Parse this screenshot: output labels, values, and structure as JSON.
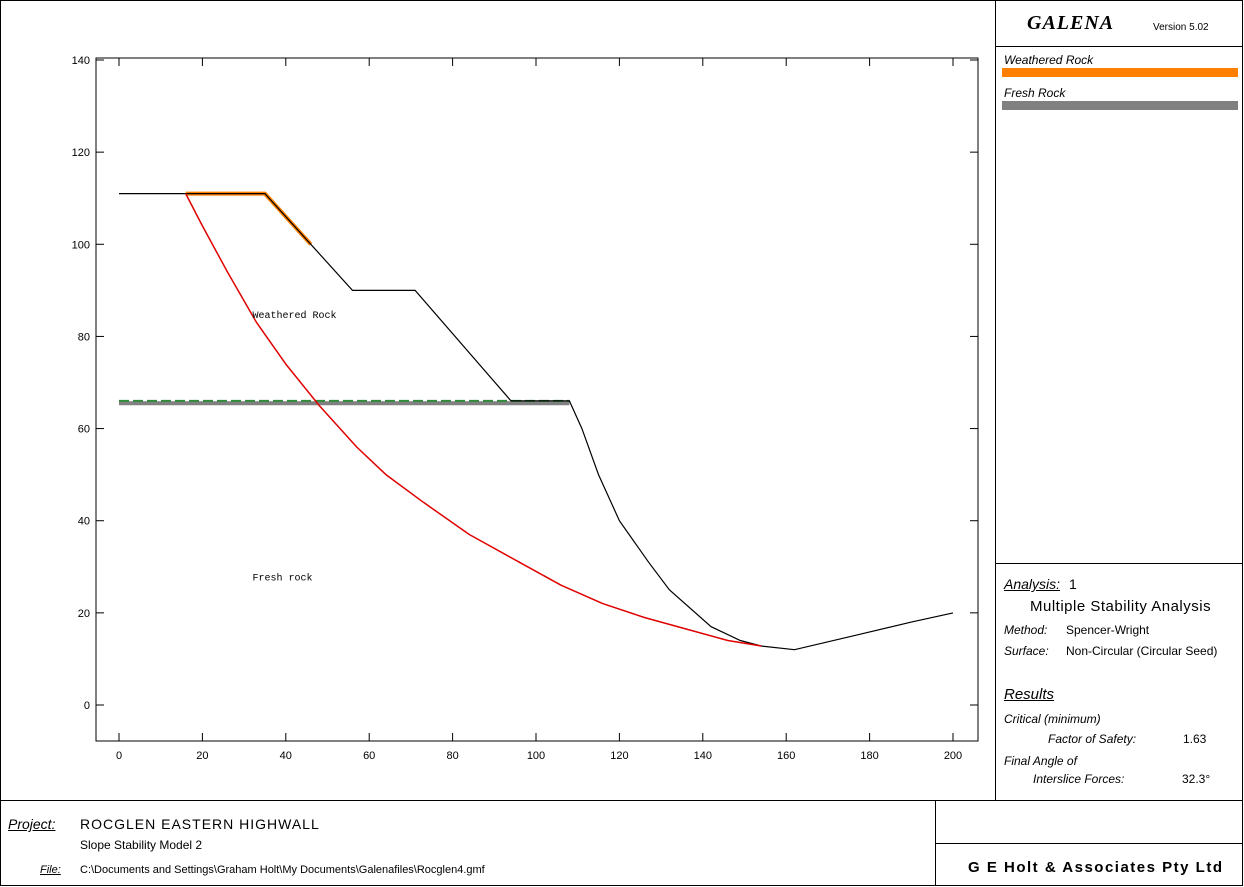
{
  "app": {
    "name": "GALENA",
    "version": "Version 5.02"
  },
  "legend": {
    "items": [
      {
        "name": "Weathered Rock",
        "color": "#ff8000"
      },
      {
        "name": "Fresh Rock",
        "color": "#808080"
      }
    ]
  },
  "analysis": {
    "label": "Analysis:",
    "number": "1",
    "title": "Multiple Stability Analysis",
    "method_label": "Method:",
    "method": "Spencer-Wright",
    "surface_label": "Surface:",
    "surface": "Non-Circular (Circular Seed)"
  },
  "results": {
    "heading": "Results",
    "critical": "Critical (minimum)",
    "fos_label": "Factor of Safety:",
    "fos_value": "1.63",
    "angle_label_1": "Final Angle of",
    "angle_label_2": "Interslice Forces:",
    "angle_value": "32.3°"
  },
  "footer": {
    "project_label": "Project:",
    "project_name": "ROCGLEN EASTERN HIGHWALL",
    "subtitle": "Slope Stability Model 2",
    "file_label": "File:",
    "file_path": "C:\\Documents and Settings\\Graham Holt\\My Documents\\Galenafiles\\Rocglen4.gmf",
    "company": "G E Holt & Associates Pty Ltd"
  },
  "chart_data": {
    "type": "diagram",
    "xlim": [
      0,
      200
    ],
    "ylim": [
      0,
      140
    ],
    "x_ticks": [
      0,
      20,
      40,
      60,
      80,
      100,
      120,
      140,
      160,
      180,
      200
    ],
    "y_ticks": [
      0,
      20,
      40,
      60,
      80,
      100,
      120,
      140
    ],
    "region_labels": [
      {
        "text": "Weathered Rock",
        "x": 32,
        "y": 84
      },
      {
        "text": "Fresh rock",
        "x": 32,
        "y": 27
      }
    ],
    "ground_profile": [
      [
        0,
        111
      ],
      [
        16,
        111
      ],
      [
        35,
        111
      ],
      [
        46,
        100
      ],
      [
        56,
        90
      ],
      [
        71,
        90
      ],
      [
        94,
        66
      ],
      [
        108,
        66
      ],
      [
        111,
        60
      ],
      [
        115,
        50
      ],
      [
        120,
        40
      ],
      [
        127,
        31
      ],
      [
        132,
        25
      ],
      [
        142,
        17
      ],
      [
        149,
        14
      ],
      [
        154,
        12.8
      ],
      [
        162,
        12
      ],
      [
        176,
        15
      ],
      [
        190,
        18
      ],
      [
        200,
        20
      ]
    ],
    "weathered_segment": [
      [
        16,
        111
      ],
      [
        35,
        111
      ],
      [
        46,
        100
      ]
    ],
    "rock_boundary": {
      "x_start": 0,
      "x_end": 108,
      "y": 65.5
    },
    "water_table": {
      "x_start": 0,
      "x_end": 108,
      "y": 66
    },
    "slip_surface": [
      [
        16,
        111
      ],
      [
        20,
        104
      ],
      [
        26,
        94
      ],
      [
        33,
        83
      ],
      [
        40,
        74
      ],
      [
        48,
        65
      ],
      [
        57,
        56
      ],
      [
        64,
        50
      ],
      [
        73,
        44
      ],
      [
        84,
        37
      ],
      [
        96,
        31
      ],
      [
        106,
        26
      ],
      [
        116,
        22
      ],
      [
        126,
        19
      ],
      [
        136,
        16.5
      ],
      [
        146,
        14
      ],
      [
        154,
        12.8
      ]
    ]
  }
}
